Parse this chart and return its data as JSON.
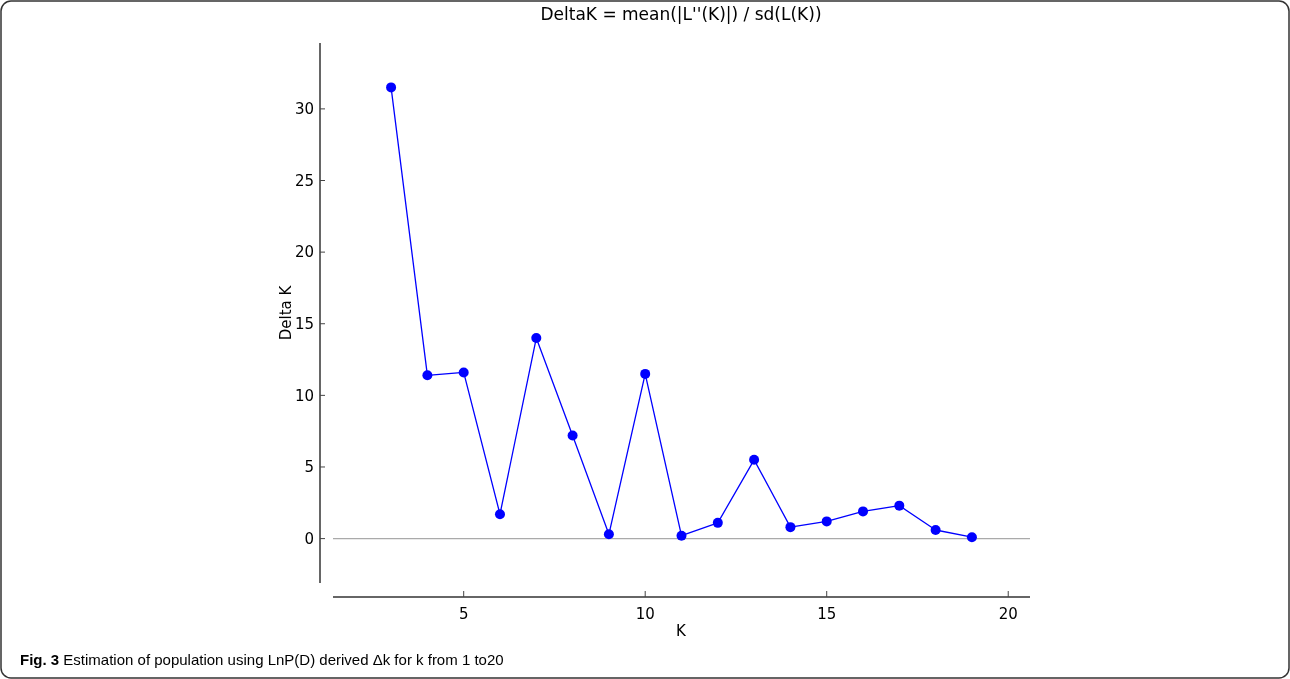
{
  "chart_data": {
    "type": "line",
    "title": "DeltaK = mean(|L''(K)|) / sd(L(K))",
    "xlabel": "K",
    "ylabel": "Delta K",
    "x": [
      3,
      4,
      5,
      6,
      7,
      8,
      9,
      10,
      11,
      12,
      13,
      14,
      15,
      16,
      17,
      18,
      19
    ],
    "series": [
      {
        "color": "#0000ff",
        "values": [
          31.5,
          11.4,
          11.6,
          1.7,
          14.0,
          7.2,
          0.3,
          11.5,
          0.2,
          1.1,
          5.5,
          0.8,
          1.2,
          1.9,
          2.3,
          0.6,
          0.1
        ]
      }
    ],
    "xlim": [
      1.4,
      20.6
    ],
    "xticks": [
      5,
      10,
      15,
      20
    ],
    "ylim": [
      -3.1,
      34.6
    ],
    "yticks": [
      0,
      5,
      10,
      15,
      20,
      25,
      30
    ],
    "marker": "circle",
    "line_style": "solid",
    "grid": false,
    "ref_lines": [
      {
        "axis": "y",
        "value": 0,
        "color": "#aaaaaa"
      }
    ],
    "annotations": [
      "Fig. 3 Estimation of population using LnP(D) derived Δk for k from 1 to20"
    ]
  }
}
